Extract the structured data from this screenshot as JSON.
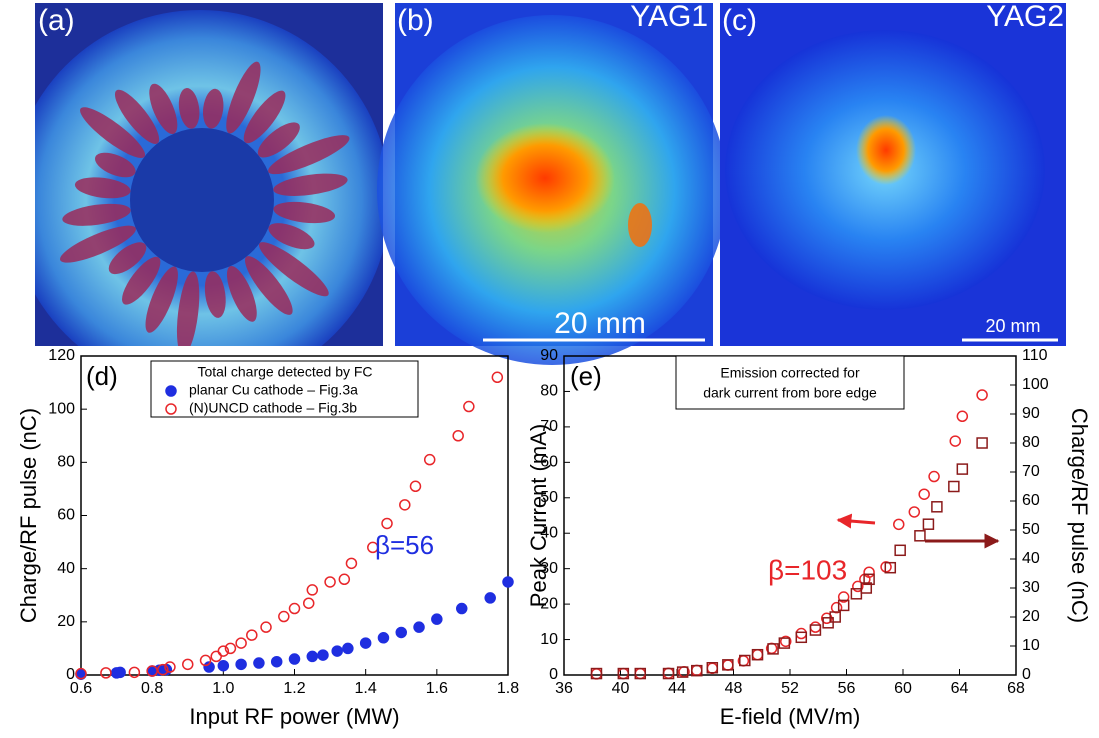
{
  "images": [
    {
      "label": "(a)"
    },
    {
      "label": "(b)",
      "name": "YAG1",
      "scale_bar": "20 mm"
    },
    {
      "label": "(c)",
      "name": "YAG2",
      "scale_bar": "20 mm"
    }
  ],
  "chart_data": [
    {
      "type": "scatter",
      "panel": "(d)",
      "xlabel": "Input RF power (MW)",
      "ylabel": "Charge/RF pulse (nC)",
      "xlim": [
        0.6,
        1.8
      ],
      "xticks": [
        0.6,
        0.8,
        {
          "value": 1,
          "label": "1.0"
        },
        1.2,
        1.4,
        1.6,
        1.8
      ],
      "ylim": [
        0,
        120
      ],
      "yticks": [
        0,
        20,
        40,
        60,
        80,
        100,
        120
      ],
      "legend": "upper left",
      "legend_title": "Total charge detected by FC",
      "annotation": "β=56",
      "series": [
        {
          "name": "planar Cu cathode – Fig.3a",
          "color": "#1f2ee0",
          "marker": "circle",
          "filled": true,
          "x": [
            0.6,
            0.7,
            0.71,
            0.8,
            0.82,
            0.84,
            0.96,
            1.0,
            1.05,
            1.1,
            1.15,
            1.2,
            1.25,
            1.28,
            1.32,
            1.35,
            1.4,
            1.45,
            1.5,
            1.55,
            1.6,
            1.67,
            1.75,
            1.8
          ],
          "values": [
            0.3,
            0.8,
            1,
            1.5,
            1.8,
            2,
            3,
            3.5,
            4,
            4.5,
            5,
            6,
            7,
            7.5,
            9,
            10,
            12,
            14,
            16,
            18,
            21,
            25,
            29,
            35
          ]
        },
        {
          "name": "(N)UNCD cathode – Fig.3b",
          "color": "#e8262a",
          "marker": "circle",
          "filled": false,
          "x": [
            0.6,
            0.67,
            0.75,
            0.8,
            0.83,
            0.85,
            0.9,
            0.95,
            0.98,
            1.0,
            1.02,
            1.05,
            1.08,
            1.12,
            1.17,
            1.2,
            1.24,
            1.25,
            1.3,
            1.34,
            1.36,
            1.42,
            1.46,
            1.51,
            1.54,
            1.58,
            1.66,
            1.69,
            1.77
          ],
          "values": [
            0.5,
            0.8,
            1,
            1.5,
            2,
            3,
            4,
            5.5,
            7,
            9,
            10,
            12,
            15,
            18,
            22,
            25,
            27,
            32,
            35,
            36,
            42,
            48,
            57,
            64,
            71,
            81,
            90,
            101,
            112
          ]
        }
      ]
    },
    {
      "type": "scatter",
      "panel": "(e)",
      "xlabel": "E-field (MV/m)",
      "ylabel": "Peak Current (mA)",
      "y2label": "Charge/RF pulse (nC)",
      "xlim": [
        36,
        68
      ],
      "xticks": [
        36,
        40,
        44,
        48,
        52,
        56,
        60,
        64,
        68
      ],
      "ylim": [
        0,
        90
      ],
      "yticks": [
        0,
        10,
        20,
        30,
        40,
        50,
        60,
        70,
        80,
        90
      ],
      "y2lim": [
        0,
        110
      ],
      "y2ticks": [
        0,
        10,
        20,
        30,
        40,
        50,
        60,
        70,
        80,
        90,
        100,
        110
      ],
      "annotation_lines": [
        "Emission corrected for",
        "dark current from bore edge"
      ],
      "annotation": "β=103",
      "series": [
        {
          "color": "#e8262a",
          "marker": "circle",
          "filled": false,
          "x": [
            38.3,
            40.2,
            41.4,
            43.4,
            44.5,
            45.4,
            46.5,
            47.6,
            48.7,
            49.7,
            50.7,
            51.7,
            52.8,
            53.8,
            54.6,
            55.3,
            55.8,
            56.8,
            57.3,
            57.6,
            58.8,
            59.7,
            60.8,
            61.5,
            62.2,
            63.7,
            64.2,
            65.6
          ],
          "values": [
            0.3,
            0.4,
            0.4,
            0.5,
            0.9,
            1.3,
            1.9,
            2.8,
            4,
            5.7,
            7.5,
            9.5,
            11.7,
            13.5,
            16,
            19,
            22,
            25,
            27,
            29,
            30.5,
            42.5,
            46,
            51,
            56,
            66,
            73,
            79
          ]
        },
        {
          "color": "#8b1a1a",
          "marker": "square",
          "filled": false,
          "axis": "y2",
          "x": [
            38.3,
            40.2,
            41.4,
            43.4,
            44.4,
            45.4,
            46.5,
            47.6,
            48.8,
            49.7,
            50.8,
            51.6,
            52.8,
            53.8,
            54.7,
            55.2,
            55.8,
            56.7,
            57.4,
            57.6,
            59.1,
            59.8,
            61.2,
            61.8,
            62.4,
            63.6,
            64.2,
            65.6
          ],
          "values": [
            0.5,
            0.5,
            0.5,
            0.5,
            1,
            1.5,
            2.5,
            3.5,
            5,
            7,
            9,
            11,
            13,
            15.5,
            18,
            20,
            24,
            28,
            30,
            33,
            37,
            43,
            48,
            52,
            58,
            65,
            71,
            80
          ]
        }
      ]
    }
  ]
}
